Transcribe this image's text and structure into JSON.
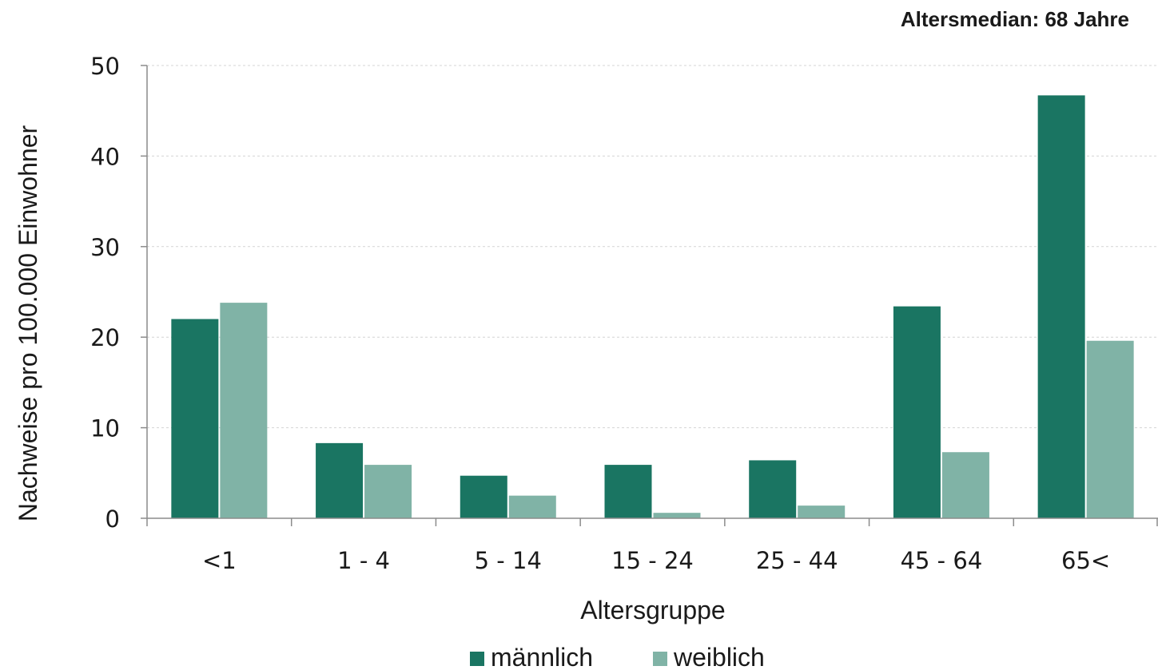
{
  "chart_data": {
    "type": "bar",
    "annotation": "Altersmedian: 68 Jahre",
    "xlabel": "Altersgruppe",
    "ylabel": "Nachweise pro 100.000  Einwohner",
    "categories": [
      "<1",
      "1 - 4",
      "5 - 14",
      "15 - 24",
      "25 - 44",
      "45 - 64",
      "65<"
    ],
    "series": [
      {
        "name": "männlich",
        "color": "#1a7562",
        "values": [
          22.0,
          8.3,
          4.7,
          5.9,
          6.4,
          23.4,
          46.7
        ]
      },
      {
        "name": "weiblich",
        "color": "#80b3a6",
        "values": [
          23.8,
          5.9,
          2.5,
          0.6,
          1.4,
          7.3,
          19.6
        ]
      }
    ],
    "ylim": [
      0,
      50
    ],
    "yticks": [
      0,
      10,
      20,
      30,
      40,
      50
    ],
    "grid": true,
    "legend_position": "bottom"
  }
}
